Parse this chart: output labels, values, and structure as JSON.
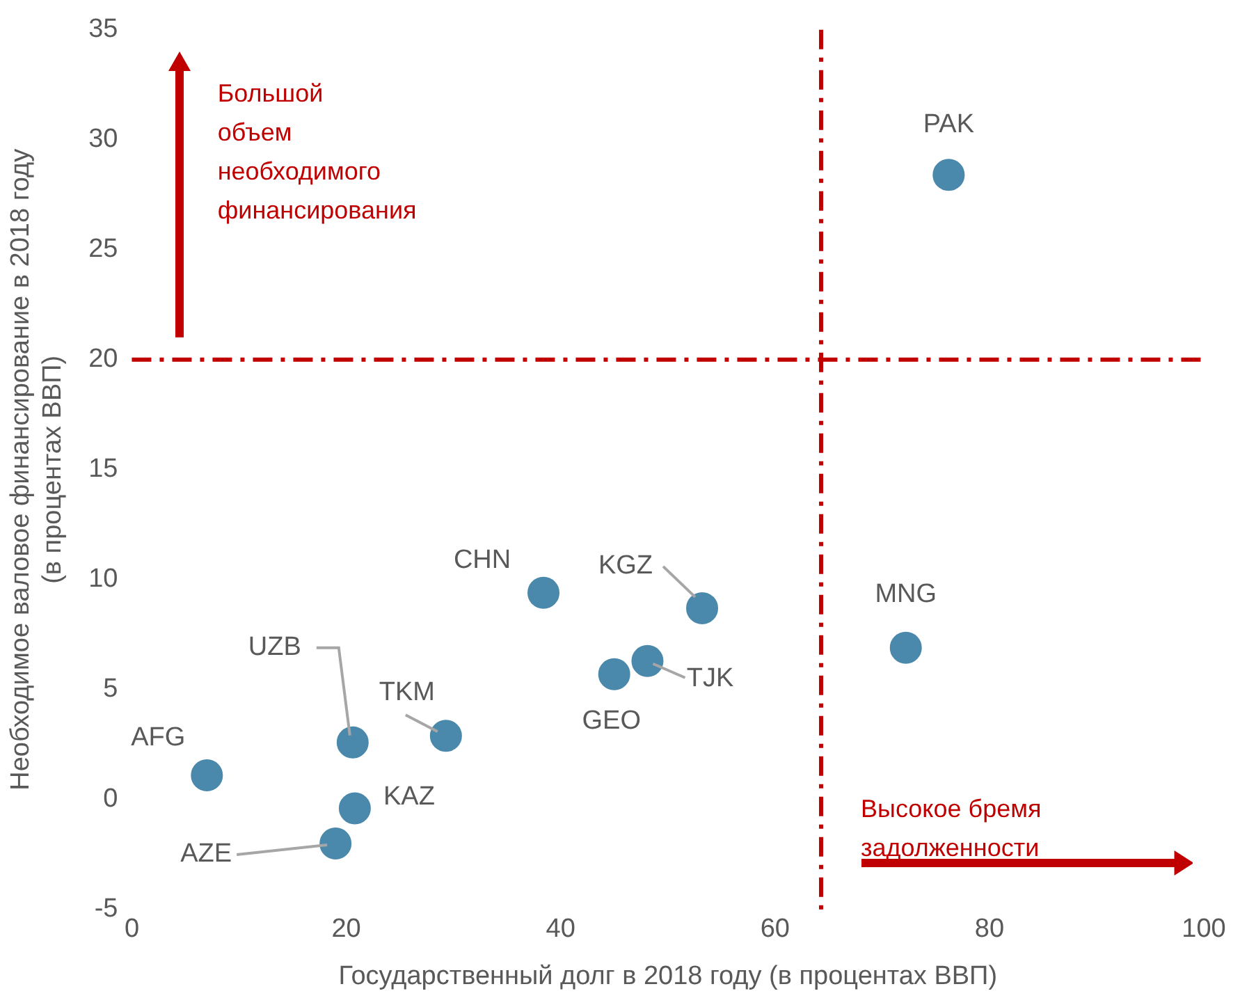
{
  "chart_data": {
    "type": "scatter",
    "xlabel": "Государственный долг в 2018 году (в процентах ВВП)",
    "ylabel": "Необходимое валовое финансирование в 2018 году\n(в процентах ВВП)",
    "xlim": [
      0,
      100
    ],
    "xticks": [
      0,
      20,
      40,
      60,
      80,
      100
    ],
    "ylim": [
      -5,
      35
    ],
    "yticks": [
      -5,
      0,
      5,
      10,
      15,
      20,
      25,
      30,
      35
    ],
    "grid": false,
    "legend": false,
    "marker": "circle",
    "series": [
      {
        "name": "PAK",
        "color": "#4a89ab",
        "x": [
          76.2
        ],
        "values": [
          28.4
        ]
      },
      {
        "name": "MNG",
        "color": "#4a89ab",
        "x": [
          72.2
        ],
        "values": [
          6.9
        ]
      },
      {
        "name": "KGZ",
        "color": "#4a89ab",
        "x": [
          53.2
        ],
        "values": [
          8.7
        ]
      },
      {
        "name": "CHN",
        "color": "#4a89ab",
        "x": [
          38.4
        ],
        "values": [
          9.4
        ]
      },
      {
        "name": "TJK",
        "color": "#4a89ab",
        "x": [
          48.1
        ],
        "values": [
          6.3
        ]
      },
      {
        "name": "GEO",
        "color": "#4a89ab",
        "x": [
          45.0
        ],
        "values": [
          5.7
        ]
      },
      {
        "name": "TKM",
        "color": "#4a89ab",
        "x": [
          29.3
        ],
        "values": [
          2.9
        ]
      },
      {
        "name": "UZB",
        "color": "#4a89ab",
        "x": [
          20.6
        ],
        "values": [
          2.6
        ]
      },
      {
        "name": "AFG",
        "color": "#4a89ab",
        "x": [
          7.0
        ],
        "values": [
          1.1
        ]
      },
      {
        "name": "KAZ",
        "color": "#4a89ab",
        "x": [
          20.8
        ],
        "values": [
          -0.4
        ]
      },
      {
        "name": "AZE",
        "color": "#4a89ab",
        "x": [
          19.0
        ],
        "values": [
          -2.0
        ]
      }
    ],
    "ref_lines": [
      {
        "axis": "x",
        "value": 64.3,
        "color": "#c00000",
        "line_style": "dashed"
      },
      {
        "axis": "y",
        "value": 20,
        "color": "#c00000",
        "line_style": "dashed"
      }
    ],
    "annotations": [
      "Большой объем необходимого финансирования",
      "Высокое бремя задолженности"
    ]
  }
}
